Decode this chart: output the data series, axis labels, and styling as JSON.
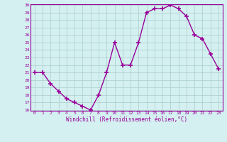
{
  "hours": [
    0,
    1,
    2,
    3,
    4,
    5,
    6,
    7,
    8,
    9,
    10,
    11,
    12,
    13,
    14,
    15,
    16,
    17,
    18,
    19,
    20,
    21,
    22,
    23
  ],
  "values": [
    21,
    21,
    19.5,
    18.5,
    17.5,
    17,
    16.5,
    16,
    18,
    21,
    25,
    22,
    22,
    25,
    29,
    29.5,
    29.5,
    30,
    29.5,
    28.5,
    26,
    25.5,
    23.5,
    21.5
  ],
  "line_color": "#990099",
  "marker": "+",
  "bg_color": "#d4f0f0",
  "grid_color": "#aacccc",
  "xlabel": "Windchill (Refroidissement éolien,°C)",
  "xlabel_color": "#990099",
  "tick_color": "#990099",
  "spine_color": "#990099",
  "ylim": [
    16,
    30
  ],
  "yticks": [
    16,
    17,
    18,
    19,
    20,
    21,
    22,
    23,
    24,
    25,
    26,
    27,
    28,
    29,
    30
  ],
  "xticks": [
    0,
    1,
    2,
    3,
    4,
    5,
    6,
    7,
    8,
    9,
    10,
    11,
    12,
    13,
    14,
    15,
    16,
    17,
    18,
    19,
    20,
    21,
    22,
    23
  ],
  "xlim": [
    -0.5,
    23.5
  ]
}
